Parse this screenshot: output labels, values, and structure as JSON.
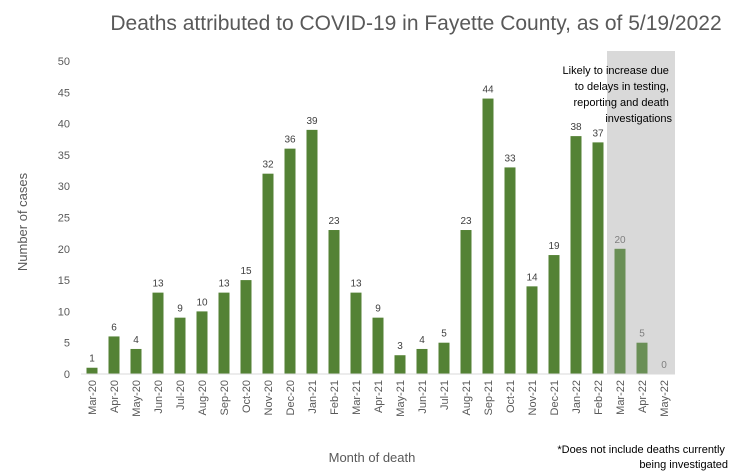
{
  "chart_data": {
    "type": "bar",
    "title": "Deaths attributed to COVID-19 in Fayette County, as of 5/19/2022",
    "xlabel": "Month of death",
    "ylabel": "Number of cases",
    "ylim": [
      0,
      50
    ],
    "yticks": [
      0,
      5,
      10,
      15,
      20,
      25,
      30,
      35,
      40,
      45,
      50
    ],
    "grid": false,
    "categories": [
      "Mar-20",
      "Apr-20",
      "May-20",
      "Jun-20",
      "Jul-20",
      "Aug-20",
      "Sep-20",
      "Oct-20",
      "Nov-20",
      "Dec-20",
      "Jan-21",
      "Feb-21",
      "Mar-21",
      "Apr-21",
      "May-21",
      "Jun-21",
      "Jul-21",
      "Aug-21",
      "Sep-21",
      "Oct-21",
      "Nov-21",
      "Dec-21",
      "Jan-22",
      "Feb-22",
      "Mar-22",
      "Apr-22",
      "May-22"
    ],
    "values": [
      1,
      6,
      4,
      13,
      9,
      10,
      13,
      15,
      32,
      36,
      39,
      23,
      13,
      9,
      3,
      4,
      5,
      23,
      44,
      33,
      14,
      19,
      38,
      37,
      20,
      5,
      0
    ],
    "bar_color": "#548235",
    "pending_bar_color": "#6a8f56",
    "pending_start_index": 24,
    "shaded_region_color": "#d9d9d9",
    "annotation": {
      "lines": [
        "Likely to increase due",
        "to delays in testing,",
        "reporting and death",
        "investigations"
      ]
    },
    "footnote": {
      "lines": [
        "*Does not include deaths currently",
        "being investigated"
      ]
    }
  }
}
